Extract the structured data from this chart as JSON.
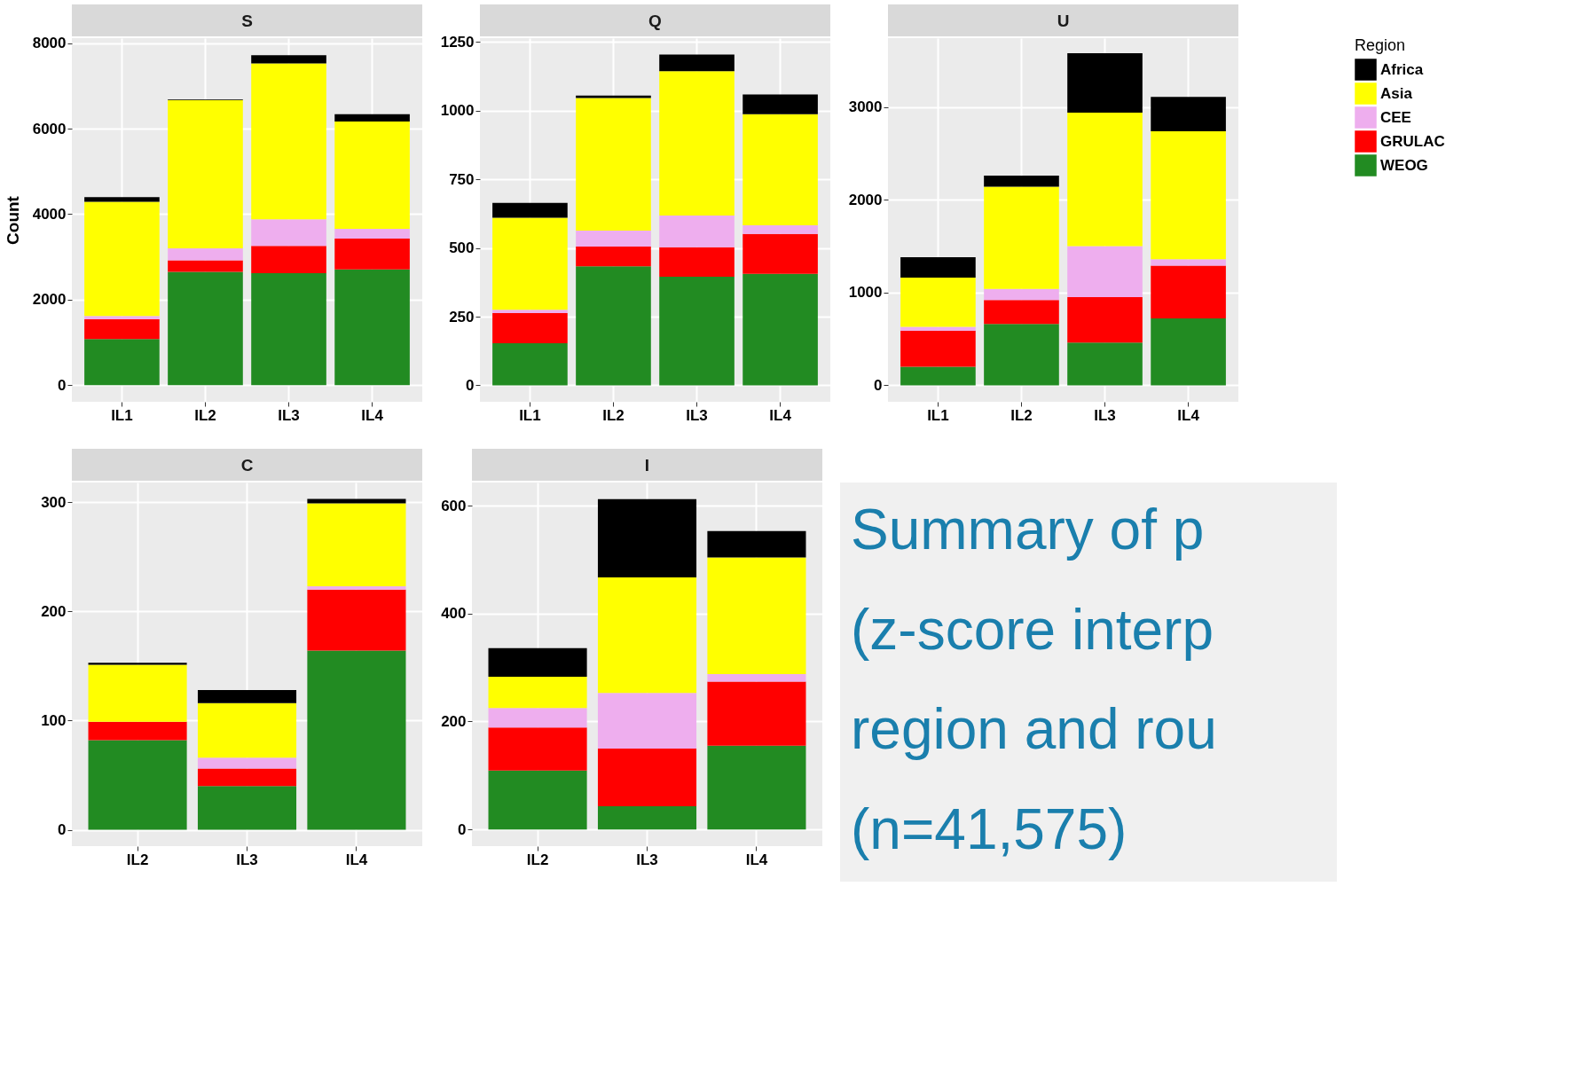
{
  "chart_data": [
    {
      "type": "bar",
      "title": "S",
      "ylabel": "Count",
      "legend_title": "Region",
      "categories": [
        "IL1",
        "IL2",
        "IL3",
        "IL4"
      ],
      "stacked": true,
      "ylim": [
        -390,
        8120
      ],
      "yticks": [
        0,
        2000,
        4000,
        6000,
        8000
      ],
      "grid": true,
      "legend": "right",
      "series": [
        {
          "name": "WEOG",
          "color": "#228b22",
          "values": [
            1080,
            2650,
            2620,
            2710
          ]
        },
        {
          "name": "GRULAC",
          "color": "#ff0000",
          "values": [
            460,
            270,
            640,
            720
          ]
        },
        {
          "name": "CEE",
          "color": "#eeaeee",
          "values": [
            80,
            280,
            620,
            230
          ]
        },
        {
          "name": "Asia",
          "color": "#ffff00",
          "values": [
            2670,
            3470,
            3650,
            2510
          ]
        },
        {
          "name": "Africa",
          "color": "#000000",
          "values": [
            110,
            20,
            190,
            170
          ]
        }
      ]
    },
    {
      "type": "bar",
      "title": "Q",
      "categories": [
        "IL1",
        "IL2",
        "IL3",
        "IL4"
      ],
      "stacked": true,
      "ylim": [
        -60,
        1264
      ],
      "yticks": [
        0,
        250,
        500,
        750,
        1000,
        1250
      ],
      "grid": true,
      "legend": "right",
      "series": [
        {
          "name": "WEOG",
          "color": "#228b22",
          "values": [
            153,
            433,
            395,
            406
          ]
        },
        {
          "name": "GRULAC",
          "color": "#ff0000",
          "values": [
            110,
            72,
            108,
            145
          ]
        },
        {
          "name": "CEE",
          "color": "#eeaeee",
          "values": [
            12,
            58,
            115,
            32
          ]
        },
        {
          "name": "Asia",
          "color": "#ffff00",
          "values": [
            335,
            483,
            526,
            404
          ]
        },
        {
          "name": "Africa",
          "color": "#000000",
          "values": [
            54,
            9,
            60,
            72
          ]
        }
      ]
    },
    {
      "type": "bar",
      "title": "U",
      "categories": [
        "IL1",
        "IL2",
        "IL3",
        "IL4"
      ],
      "stacked": true,
      "ylim": [
        -178,
        3743
      ],
      "yticks": [
        0,
        1000,
        2000,
        3000
      ],
      "grid": true,
      "legend": "right",
      "series": [
        {
          "name": "WEOG",
          "color": "#228b22",
          "values": [
            200,
            660,
            460,
            720
          ]
        },
        {
          "name": "GRULAC",
          "color": "#ff0000",
          "values": [
            390,
            260,
            490,
            570
          ]
        },
        {
          "name": "CEE",
          "color": "#eeaeee",
          "values": [
            40,
            120,
            550,
            70
          ]
        },
        {
          "name": "Asia",
          "color": "#ffff00",
          "values": [
            530,
            1100,
            1440,
            1380
          ]
        },
        {
          "name": "Africa",
          "color": "#000000",
          "values": [
            220,
            120,
            640,
            370
          ]
        }
      ]
    },
    {
      "type": "bar",
      "title": "C",
      "categories": [
        "IL2",
        "IL3",
        "IL4"
      ],
      "stacked": true,
      "ylim": [
        -15,
        318
      ],
      "yticks": [
        0,
        100,
        200,
        300
      ],
      "grid": true,
      "legend": "right",
      "series": [
        {
          "name": "WEOG",
          "color": "#228b22",
          "values": [
            82,
            40,
            164
          ]
        },
        {
          "name": "GRULAC",
          "color": "#ff0000",
          "values": [
            17,
            16,
            56
          ]
        },
        {
          "name": "CEE",
          "color": "#eeaeee",
          "values": [
            0,
            10,
            3
          ]
        },
        {
          "name": "Asia",
          "color": "#ffff00",
          "values": [
            52,
            50,
            76
          ]
        },
        {
          "name": "Africa",
          "color": "#000000",
          "values": [
            2,
            12,
            4
          ]
        }
      ]
    },
    {
      "type": "bar",
      "title": "I",
      "categories": [
        "IL2",
        "IL3",
        "IL4"
      ],
      "stacked": true,
      "ylim": [
        -31,
        643
      ],
      "yticks": [
        0,
        200,
        400,
        600
      ],
      "grid": true,
      "legend": "right",
      "series": [
        {
          "name": "WEOG",
          "color": "#228b22",
          "values": [
            109,
            43,
            155
          ]
        },
        {
          "name": "GRULAC",
          "color": "#ff0000",
          "values": [
            80,
            107,
            119
          ]
        },
        {
          "name": "CEE",
          "color": "#eeaeee",
          "values": [
            36,
            103,
            14
          ]
        },
        {
          "name": "Asia",
          "color": "#ffff00",
          "values": [
            58,
            214,
            216
          ]
        },
        {
          "name": "Africa",
          "color": "#000000",
          "values": [
            53,
            145,
            49
          ]
        }
      ]
    },
    {
      "type": "other",
      "annotations": [
        "Summary of p",
        "(z-score interp",
        "region and rou",
        "(n=41,575)"
      ]
    }
  ]
}
